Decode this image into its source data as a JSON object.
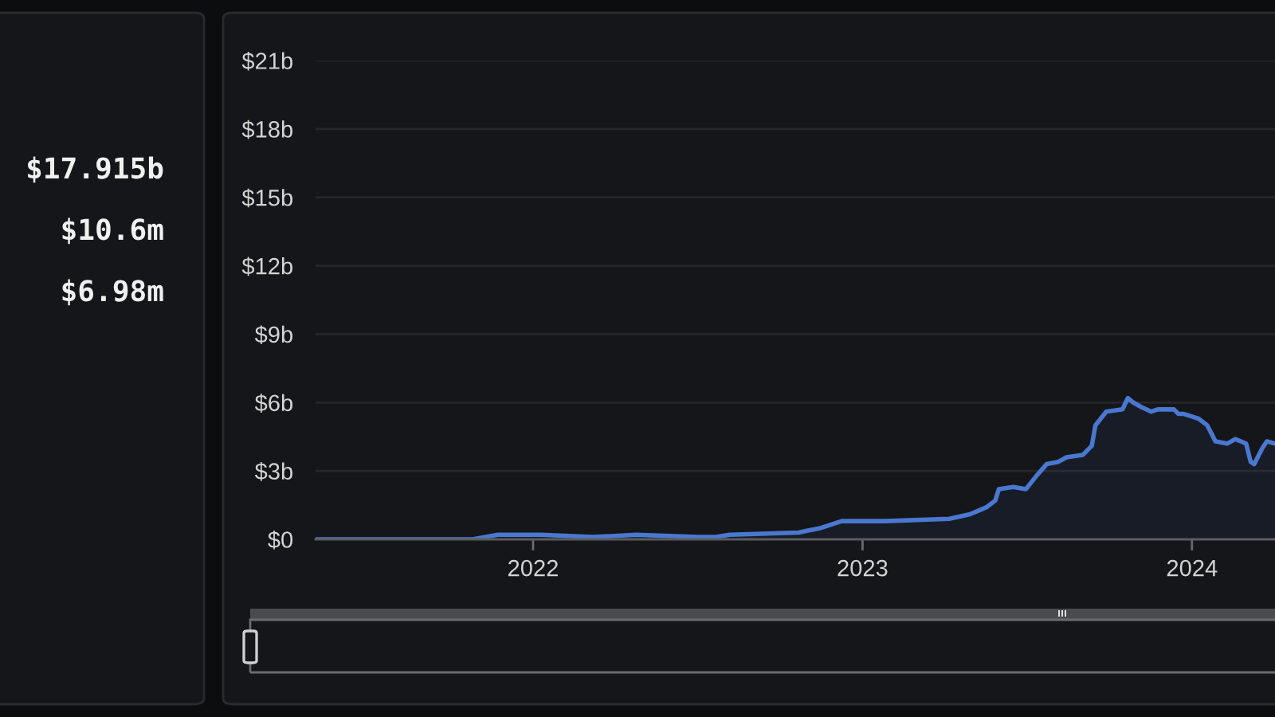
{
  "chart_data": [
    {
      "type": "other",
      "annotations": [
        "$17.915b",
        "$10.6m",
        "$6.98m"
      ]
    },
    {
      "type": "area",
      "x": [
        "2021-05-05",
        "2021-10-26",
        "2021-11-23",
        "2022-01-10",
        "2022-03-08",
        "2022-04-25",
        "2022-07-03",
        "2022-07-21",
        "2022-08-07",
        "2022-10-22",
        "2022-11-16",
        "2022-12-09",
        "2023-01-26",
        "2023-04-07",
        "2023-04-30",
        "2023-05-18",
        "2023-05-28",
        "2023-06-01",
        "2023-06-17",
        "2023-07-01",
        "2023-07-13",
        "2023-07-24",
        "2023-08-06",
        "2023-08-15",
        "2023-09-02",
        "2023-09-12",
        "2023-09-16",
        "2023-09-28",
        "2023-10-16",
        "2023-10-22",
        "2023-10-28",
        "2023-11-06",
        "2023-11-17",
        "2023-11-24",
        "2023-12-12",
        "2023-12-17",
        "2023-12-23",
        "2024-01-08",
        "2024-01-18",
        "2024-01-27",
        "2024-02-09",
        "2024-02-18",
        "2024-03-01",
        "2024-03-06",
        "2024-03-10",
        "2024-03-19",
        "2024-03-24",
        "2024-04-02"
      ],
      "series": [
        {
          "color": "#4a78d0",
          "values": [
            0.0,
            0.0,
            0.2,
            0.2,
            0.1,
            0.2,
            0.1,
            0.1,
            0.2,
            0.3,
            0.5,
            0.8,
            0.8,
            0.9,
            1.1,
            1.4,
            1.7,
            2.2,
            2.3,
            2.2,
            2.8,
            3.3,
            3.4,
            3.6,
            3.7,
            4.1,
            5.0,
            5.6,
            5.7,
            6.2,
            6.0,
            5.8,
            5.6,
            5.7,
            5.7,
            5.5,
            5.5,
            5.3,
            5.0,
            4.3,
            4.2,
            4.4,
            4.2,
            3.4,
            3.3,
            4.0,
            4.3,
            4.2
          ]
        }
      ],
      "xlim": [
        "2021-05-05",
        "2024-04-02"
      ],
      "xticks": [
        {
          "value": "2022-01-01",
          "label": "2022"
        },
        {
          "value": "2023-01-01",
          "label": "2023"
        },
        {
          "value": "2024-01-01",
          "label": "2024"
        }
      ],
      "ylim": [
        0,
        21
      ],
      "yticks": [
        {
          "value": 0,
          "label": "$0"
        },
        {
          "value": 3,
          "label": "$3b"
        },
        {
          "value": 6,
          "label": "$6b"
        },
        {
          "value": 9,
          "label": "$9b"
        },
        {
          "value": 12,
          "label": "$12b"
        },
        {
          "value": 15,
          "label": "$15b"
        },
        {
          "value": 18,
          "label": "$18b"
        },
        {
          "value": 21,
          "label": "$21b"
        }
      ],
      "grid": "y"
    }
  ]
}
